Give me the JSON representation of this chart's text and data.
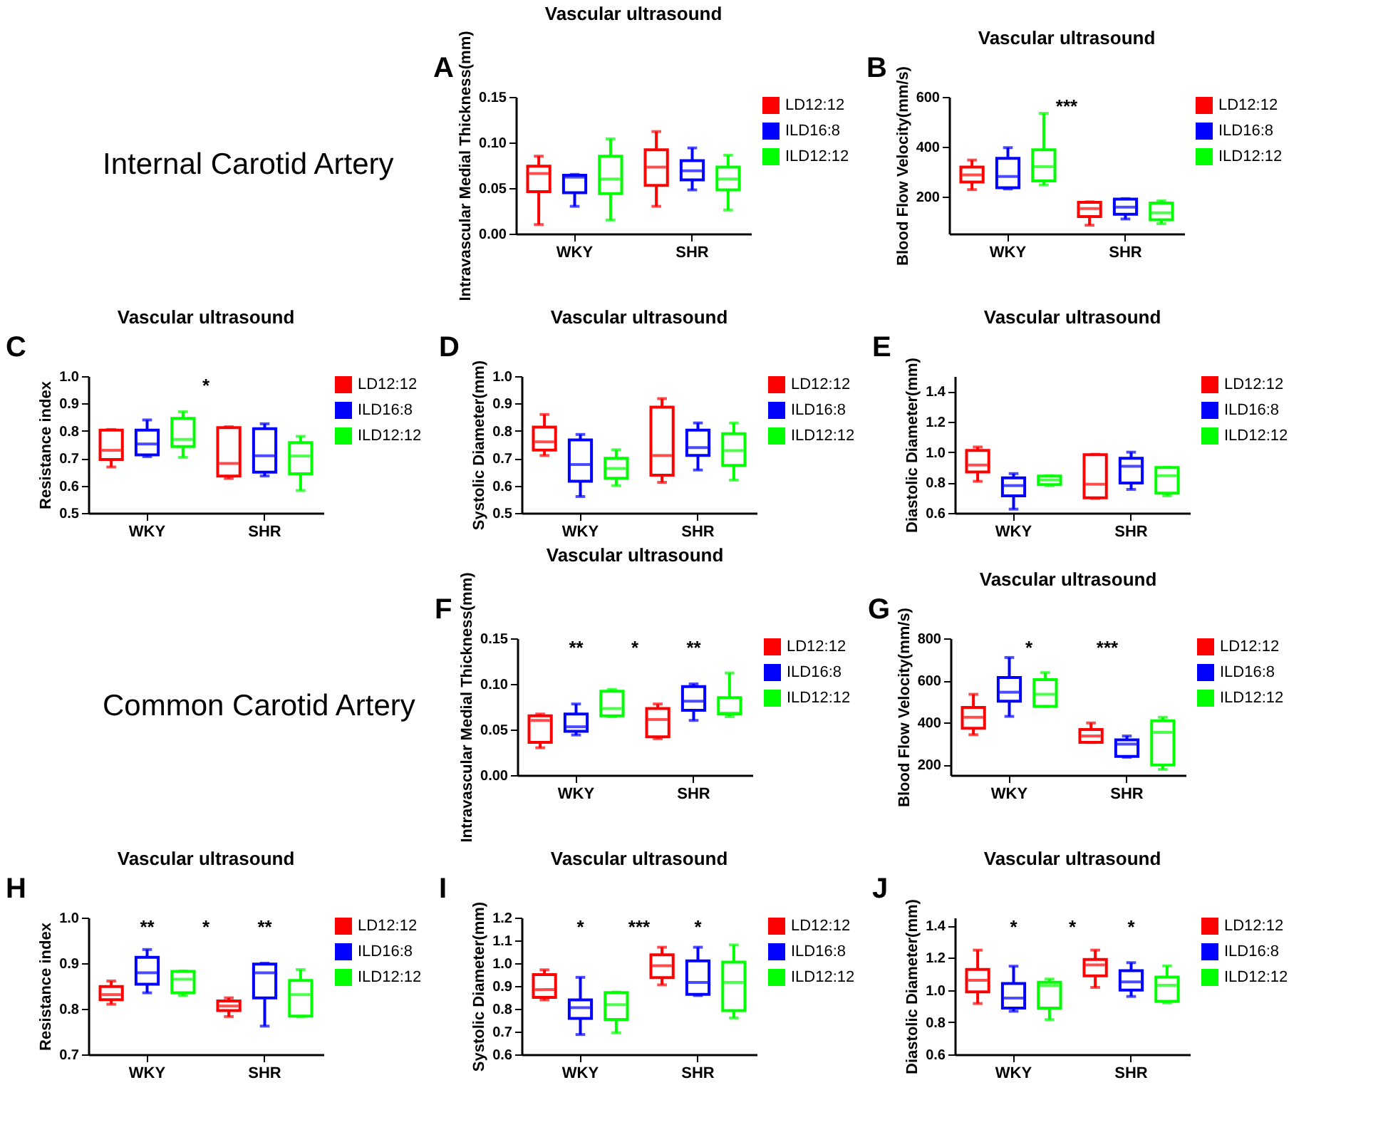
{
  "chart_data": [
    {
      "type": "other",
      "annotations": [
        "Internal Carotid Artery"
      ]
    },
    {
      "type": "box",
      "title": "Vascular ultrasound",
      "ylabel": "Intravascular Medial Thickness(mm)",
      "categories": [
        "WKY",
        "SHR"
      ],
      "ylim": [
        0,
        0.15
      ],
      "yticks": [
        {
          "value": 0,
          "label": "0.00"
        },
        0.05,
        {
          "value": 0.1,
          "label": "0.10"
        },
        0.15
      ],
      "legend": "top right",
      "annotations": [
        "A"
      ],
      "series": [
        {
          "name": "LD12:12",
          "color": "#ff0000",
          "boxes": [
            {
              "low": 0.01,
              "q1": 0.046,
              "median": 0.066,
              "q3": 0.074,
              "high": 0.085
            },
            {
              "low": 0.03,
              "q1": 0.053,
              "median": 0.073,
              "q3": 0.092,
              "high": 0.112
            }
          ]
        },
        {
          "name": "ILD16:8",
          "color": "#0000ff",
          "boxes": [
            {
              "low": 0.03,
              "q1": 0.045,
              "median": 0.062,
              "q3": 0.064,
              "high": 0.065
            },
            {
              "low": 0.048,
              "q1": 0.059,
              "median": 0.069,
              "q3": 0.08,
              "high": 0.094
            }
          ]
        },
        {
          "name": "ILD12:12",
          "color": "#00ff00",
          "boxes": [
            {
              "low": 0.015,
              "q1": 0.044,
              "median": 0.06,
              "q3": 0.085,
              "high": 0.104
            },
            {
              "low": 0.026,
              "q1": 0.048,
              "median": 0.06,
              "q3": 0.073,
              "high": 0.086
            }
          ]
        }
      ]
    },
    {
      "type": "box",
      "title": "Vascular ultrasound",
      "ylabel": "Blood Flow Velocity(mm/s)",
      "categories": [
        "WKY",
        "SHR"
      ],
      "ylim": [
        50,
        600
      ],
      "yticks": [
        200,
        400,
        600
      ],
      "legend": "top right",
      "annotations": [
        "B",
        "***"
      ],
      "series": [
        {
          "name": "LD12:12",
          "color": "#ff0000",
          "boxes": [
            {
              "low": 227,
              "q1": 258,
              "median": 286,
              "q3": 318,
              "high": 346
            },
            {
              "low": 84,
              "q1": 119,
              "median": 151,
              "q3": 176,
              "high": 178
            }
          ]
        },
        {
          "name": "ILD16:8",
          "color": "#0000ff",
          "boxes": [
            {
              "low": 230,
              "q1": 235,
              "median": 280,
              "q3": 353,
              "high": 396
            },
            {
              "low": 109,
              "q1": 128,
              "median": 157,
              "q3": 189,
              "high": 191
            }
          ]
        },
        {
          "name": "ILD12:12",
          "color": "#00ff00",
          "boxes": [
            {
              "low": 246,
              "q1": 262,
              "median": 319,
              "q3": 387,
              "high": 534
            },
            {
              "low": 90,
              "q1": 106,
              "median": 134,
              "q3": 173,
              "high": 182
            }
          ]
        }
      ]
    },
    {
      "type": "box",
      "title": "Vascular ultrasound",
      "ylabel": "Resistance index",
      "categories": [
        "WKY",
        "SHR"
      ],
      "ylim": [
        0.5,
        1
      ],
      "yticks": [
        0.5,
        0.6,
        0.7,
        0.8,
        0.9,
        {
          "value": 1,
          "label": "1.0"
        }
      ],
      "legend": "top right",
      "annotations": [
        "C",
        "*"
      ],
      "series": [
        {
          "name": "LD12:12",
          "color": "#ff0000",
          "boxes": [
            {
              "low": 0.668,
              "q1": 0.695,
              "median": 0.729,
              "q3": 0.803,
              "high": 0.805
            },
            {
              "low": 0.626,
              "q1": 0.635,
              "median": 0.681,
              "q3": 0.812,
              "high": 0.815
            }
          ]
        },
        {
          "name": "ILD16:8",
          "color": "#0000ff",
          "boxes": [
            {
              "low": 0.706,
              "q1": 0.712,
              "median": 0.752,
              "q3": 0.803,
              "high": 0.84
            },
            {
              "low": 0.635,
              "q1": 0.649,
              "median": 0.709,
              "q3": 0.808,
              "high": 0.826
            }
          ]
        },
        {
          "name": "ILD12:12",
          "color": "#00ff00",
          "boxes": [
            {
              "low": 0.703,
              "q1": 0.743,
              "median": 0.769,
              "q3": 0.846,
              "high": 0.87
            },
            {
              "low": 0.582,
              "q1": 0.643,
              "median": 0.708,
              "q3": 0.757,
              "high": 0.78
            }
          ]
        }
      ]
    },
    {
      "type": "box",
      "title": "Vascular ultrasound",
      "ylabel": "Systolic Diameter(mm)",
      "categories": [
        "WKY",
        "SHR"
      ],
      "ylim": [
        0.5,
        1
      ],
      "yticks": [
        0.5,
        0.6,
        0.7,
        0.8,
        0.9,
        {
          "value": 1,
          "label": "1.0"
        }
      ],
      "legend": "top right",
      "annotations": [
        "D"
      ],
      "series": [
        {
          "name": "LD12:12",
          "color": "#ff0000",
          "boxes": [
            {
              "low": 0.71,
              "q1": 0.73,
              "median": 0.76,
              "q3": 0.814,
              "high": 0.86
            },
            {
              "low": 0.612,
              "q1": 0.638,
              "median": 0.71,
              "q3": 0.887,
              "high": 0.918
            }
          ]
        },
        {
          "name": "ILD16:8",
          "color": "#0000ff",
          "boxes": [
            {
              "low": 0.56,
              "q1": 0.616,
              "median": 0.677,
              "q3": 0.767,
              "high": 0.787
            },
            {
              "low": 0.657,
              "q1": 0.71,
              "median": 0.739,
              "q3": 0.803,
              "high": 0.829
            }
          ]
        },
        {
          "name": "ILD12:12",
          "color": "#00ff00",
          "boxes": [
            {
              "low": 0.6,
              "q1": 0.627,
              "median": 0.663,
              "q3": 0.7,
              "high": 0.731
            },
            {
              "low": 0.62,
              "q1": 0.674,
              "median": 0.728,
              "q3": 0.79,
              "high": 0.829
            }
          ]
        }
      ]
    },
    {
      "type": "box",
      "title": "Vascular ultrasound",
      "ylabel": "Diastolic Diameter(mm)",
      "categories": [
        "WKY",
        "SHR"
      ],
      "ylim": [
        0.6,
        1.5
      ],
      "yticks": [
        0.6,
        0.8,
        {
          "value": 1,
          "label": "1.0"
        },
        1.2,
        1.4
      ],
      "legend": "top right",
      "annotations": [
        "E"
      ],
      "series": [
        {
          "name": "LD12:12",
          "color": "#ff0000",
          "boxes": [
            {
              "low": 0.808,
              "q1": 0.87,
              "median": 0.915,
              "q3": 1.011,
              "high": 1.034
            },
            {
              "low": 0.696,
              "q1": 0.7,
              "median": 0.789,
              "q3": 0.983,
              "high": 0.986
            }
          ]
        },
        {
          "name": "ILD16:8",
          "color": "#0000ff",
          "boxes": [
            {
              "low": 0.625,
              "q1": 0.713,
              "median": 0.78,
              "q3": 0.831,
              "high": 0.859
            },
            {
              "low": 0.755,
              "q1": 0.797,
              "median": 0.907,
              "q3": 0.96,
              "high": 1.0
            }
          ]
        },
        {
          "name": "ILD12:12",
          "color": "#00ff00",
          "boxes": [
            {
              "low": 0.78,
              "q1": 0.786,
              "median": 0.817,
              "q3": 0.842,
              "high": 0.845
            },
            {
              "low": 0.713,
              "q1": 0.73,
              "median": 0.845,
              "q3": 0.899,
              "high": 0.9
            }
          ]
        }
      ]
    },
    {
      "type": "other",
      "annotations": [
        "Common Carotid Artery"
      ]
    },
    {
      "type": "box",
      "title": "Vascular ultrasound",
      "ylabel": "Intravascular Medial Thickness(mm)",
      "categories": [
        "WKY",
        "SHR"
      ],
      "ylim": [
        0,
        0.15
      ],
      "yticks": [
        {
          "value": 0,
          "label": "0.00"
        },
        0.05,
        {
          "value": 0.1,
          "label": "0.10"
        },
        0.15
      ],
      "legend": "top right",
      "annotations": [
        "F",
        "**",
        "*",
        "**"
      ],
      "series": [
        {
          "name": "LD12:12",
          "color": "#ff0000",
          "boxes": [
            {
              "low": 0.03,
              "q1": 0.036,
              "median": 0.06,
              "q3": 0.065,
              "high": 0.067
            },
            {
              "low": 0.04,
              "q1": 0.042,
              "median": 0.061,
              "q3": 0.073,
              "high": 0.078
            }
          ]
        },
        {
          "name": "ILD16:8",
          "color": "#0000ff",
          "boxes": [
            {
              "low": 0.044,
              "q1": 0.048,
              "median": 0.053,
              "q3": 0.067,
              "high": 0.078
            },
            {
              "low": 0.06,
              "q1": 0.071,
              "median": 0.081,
              "q3": 0.097,
              "high": 0.1
            }
          ]
        },
        {
          "name": "ILD12:12",
          "color": "#00ff00",
          "boxes": [
            {
              "low": 0.064,
              "q1": 0.065,
              "median": 0.073,
              "q3": 0.092,
              "high": 0.094
            },
            {
              "low": 0.064,
              "q1": 0.067,
              "median": 0.068,
              "q3": 0.085,
              "high": 0.112
            }
          ]
        }
      ]
    },
    {
      "type": "box",
      "title": "Vascular ultrasound",
      "ylabel": "Blood Flow Velocity(mm/s)",
      "categories": [
        "WKY",
        "SHR"
      ],
      "ylim": [
        150,
        800
      ],
      "yticks": [
        200,
        400,
        600,
        800
      ],
      "legend": "top right",
      "annotations": [
        "G",
        "*",
        "***"
      ],
      "series": [
        {
          "name": "LD12:12",
          "color": "#ff0000",
          "boxes": [
            {
              "low": 342,
              "q1": 373,
              "median": 425,
              "q3": 472,
              "high": 534
            },
            {
              "low": 305,
              "q1": 306,
              "median": 336,
              "q3": 367,
              "high": 398
            }
          ]
        },
        {
          "name": "ILD16:8",
          "color": "#0000ff",
          "boxes": [
            {
              "low": 429,
              "q1": 501,
              "median": 544,
              "q3": 614,
              "high": 709
            },
            {
              "low": 235,
              "q1": 239,
              "median": 297,
              "q3": 318,
              "high": 336
            }
          ]
        },
        {
          "name": "ILD12:12",
          "color": "#00ff00",
          "boxes": [
            {
              "low": 476,
              "q1": 477,
              "median": 534,
              "q3": 604,
              "high": 637
            },
            {
              "low": 177,
              "q1": 198,
              "median": 353,
              "q3": 408,
              "high": 425
            }
          ]
        }
      ]
    },
    {
      "type": "box",
      "title": "Vascular ultrasound",
      "ylabel": "Resistance index",
      "categories": [
        "WKY",
        "SHR"
      ],
      "ylim": [
        0.7,
        1
      ],
      "yticks": [
        0.7,
        0.8,
        0.9,
        {
          "value": 1,
          "label": "1.0"
        }
      ],
      "legend": "top right",
      "annotations": [
        "H",
        "**",
        "*",
        "**"
      ],
      "series": [
        {
          "name": "LD12:12",
          "color": "#ff0000",
          "boxes": [
            {
              "low": 0.81,
              "q1": 0.82,
              "median": 0.831,
              "q3": 0.849,
              "high": 0.861
            },
            {
              "low": 0.783,
              "q1": 0.796,
              "median": 0.806,
              "q3": 0.817,
              "high": 0.824
            }
          ]
        },
        {
          "name": "ILD16:8",
          "color": "#0000ff",
          "boxes": [
            {
              "low": 0.835,
              "q1": 0.854,
              "median": 0.879,
              "q3": 0.913,
              "high": 0.93
            },
            {
              "low": 0.762,
              "q1": 0.824,
              "median": 0.879,
              "q3": 0.898,
              "high": 0.9
            }
          ]
        },
        {
          "name": "ILD12:12",
          "color": "#00ff00",
          "boxes": [
            {
              "low": 0.829,
              "q1": 0.835,
              "median": 0.865,
              "q3": 0.882,
              "high": 0.883
            },
            {
              "low": 0.783,
              "q1": 0.784,
              "median": 0.831,
              "q3": 0.862,
              "high": 0.886
            }
          ]
        }
      ]
    },
    {
      "type": "box",
      "title": "Vascular ultrasound",
      "ylabel": "Systolic Diameter(mm)",
      "categories": [
        "WKY",
        "SHR"
      ],
      "ylim": [
        0.6,
        1.2
      ],
      "yticks": [
        0.6,
        0.7,
        0.8,
        0.9,
        {
          "value": 1,
          "label": "1.0"
        },
        1.1,
        1.2
      ],
      "legend": "top right",
      "annotations": [
        "I",
        "*",
        "***",
        "*"
      ],
      "series": [
        {
          "name": "LD12:12",
          "color": "#ff0000",
          "boxes": [
            {
              "low": 0.839,
              "q1": 0.85,
              "median": 0.884,
              "q3": 0.95,
              "high": 0.971
            },
            {
              "low": 0.905,
              "q1": 0.937,
              "median": 0.989,
              "q3": 1.037,
              "high": 1.07
            }
          ]
        },
        {
          "name": "ILD16:8",
          "color": "#0000ff",
          "boxes": [
            {
              "low": 0.687,
              "q1": 0.758,
              "median": 0.805,
              "q3": 0.839,
              "high": 0.938
            },
            {
              "low": 0.858,
              "q1": 0.863,
              "median": 0.916,
              "q3": 1.01,
              "high": 1.07
            }
          ]
        },
        {
          "name": "ILD12:12",
          "color": "#00ff00",
          "boxes": [
            {
              "low": 0.695,
              "q1": 0.753,
              "median": 0.818,
              "q3": 0.871,
              "high": 0.873
            },
            {
              "low": 0.76,
              "q1": 0.792,
              "median": 0.916,
              "q3": 1.005,
              "high": 1.08
            }
          ]
        }
      ]
    },
    {
      "type": "box",
      "title": "Vascular ultrasound",
      "ylabel": "Diastolic Diameter(mm)",
      "categories": [
        "WKY",
        "SHR"
      ],
      "ylim": [
        0.6,
        1.45
      ],
      "yticks": [
        0.6,
        0.8,
        {
          "value": 1,
          "label": "1.0"
        },
        1.2,
        1.4
      ],
      "legend": "top right",
      "annotations": [
        "J",
        "*",
        "*",
        "*"
      ],
      "series": [
        {
          "name": "LD12:12",
          "color": "#ff0000",
          "boxes": [
            {
              "low": 0.916,
              "q1": 0.988,
              "median": 1.06,
              "q3": 1.128,
              "high": 1.248
            },
            {
              "low": 1.016,
              "q1": 1.088,
              "median": 1.156,
              "q3": 1.19,
              "high": 1.248
            }
          ]
        },
        {
          "name": "ILD16:8",
          "color": "#0000ff",
          "boxes": [
            {
              "low": 0.868,
              "q1": 0.888,
              "median": 0.95,
              "q3": 1.04,
              "high": 1.148
            },
            {
              "low": 0.96,
              "q1": 1.0,
              "median": 1.05,
              "q3": 1.12,
              "high": 1.17
            }
          ]
        },
        {
          "name": "ILD12:12",
          "color": "#00ff00",
          "boxes": [
            {
              "low": 0.816,
              "q1": 0.888,
              "median": 1.028,
              "q3": 1.048,
              "high": 1.068
            },
            {
              "low": 0.92,
              "q1": 0.93,
              "median": 1.03,
              "q3": 1.08,
              "high": 1.15
            }
          ]
        }
      ]
    }
  ]
}
